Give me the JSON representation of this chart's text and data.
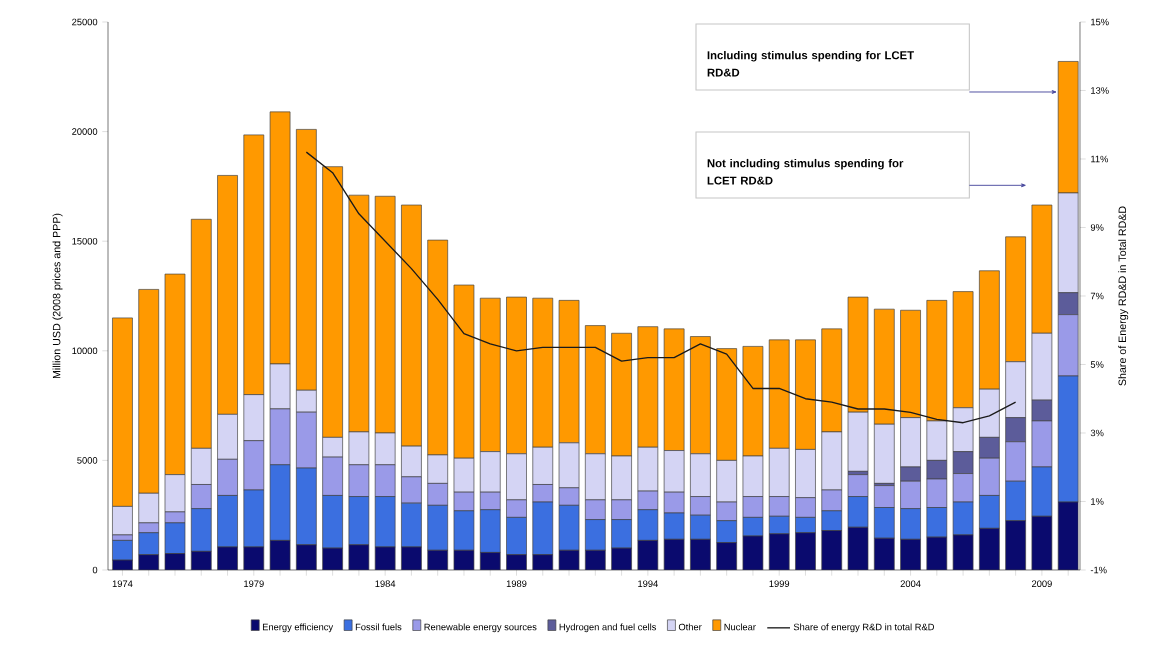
{
  "chart_data": {
    "type": "bar",
    "stacked": true,
    "legend": "bottom",
    "ylabel": "Million USD (2008 prices and PPP)",
    "y2label": "Share of Energy RD&D in Total RD&D",
    "categories": [
      "1974",
      null,
      null,
      null,
      null,
      "1979",
      null,
      null,
      null,
      null,
      "1984",
      null,
      null,
      null,
      null,
      "1989",
      null,
      null,
      null,
      null,
      "1994",
      null,
      null,
      null,
      null,
      "1999",
      null,
      null,
      null,
      null,
      "2004",
      null,
      null,
      null,
      null,
      "2009",
      null
    ],
    "ylim": [
      0,
      25000
    ],
    "yticks": [
      0,
      5000,
      10000,
      15000,
      20000,
      25000
    ],
    "y2lim": [
      -1,
      15
    ],
    "y2ticks": [
      {
        "value": -1,
        "label": "-1%"
      },
      {
        "value": 1,
        "label": "1%"
      },
      {
        "value": 3,
        "label": "3%"
      },
      {
        "value": 5,
        "label": "5%"
      },
      {
        "value": 7,
        "label": "7%"
      },
      {
        "value": 9,
        "label": "9%"
      },
      {
        "value": 11,
        "label": "11%"
      },
      {
        "value": 13,
        "label": "13%"
      },
      {
        "value": 15,
        "label": "15%"
      }
    ],
    "series": [
      {
        "name": "Energy efficiency",
        "color": "#0a0a6e",
        "values": [
          450,
          700,
          750,
          850,
          1050,
          1050,
          1350,
          1150,
          1000,
          1150,
          1050,
          1050,
          900,
          900,
          800,
          700,
          700,
          900,
          900,
          1000,
          1350,
          1400,
          1400,
          1250,
          1550,
          1650,
          1700,
          1800,
          1950,
          1450,
          1400,
          1500,
          1600,
          1900,
          2250,
          2450,
          3100
        ]
      },
      {
        "name": "Fossil fuels",
        "color": "#3b6fe0",
        "values": [
          900,
          1000,
          1400,
          1950,
          2350,
          2600,
          3450,
          3500,
          2400,
          2200,
          2300,
          2000,
          2050,
          1800,
          1950,
          1700,
          2400,
          2050,
          1400,
          1300,
          1400,
          1200,
          1100,
          1000,
          850,
          800,
          700,
          900,
          1400,
          1400,
          1400,
          1350,
          1500,
          1500,
          1800,
          2250,
          5750
        ]
      },
      {
        "name": "Renewable energy sources",
        "color": "#9a9ae8",
        "values": [
          250,
          450,
          500,
          1100,
          1650,
          2250,
          2550,
          2550,
          1750,
          1450,
          1450,
          1200,
          1000,
          850,
          800,
          800,
          800,
          800,
          900,
          900,
          850,
          950,
          850,
          850,
          950,
          900,
          900,
          950,
          1000,
          1000,
          1250,
          1300,
          1300,
          1700,
          1800,
          2100,
          2800
        ]
      },
      {
        "name": "Hydrogen and fuel cells",
        "color": "#5c5c9a",
        "values": [
          0,
          0,
          0,
          0,
          0,
          0,
          0,
          0,
          0,
          0,
          0,
          0,
          0,
          0,
          0,
          0,
          0,
          0,
          0,
          0,
          0,
          0,
          0,
          0,
          0,
          0,
          0,
          0,
          150,
          100,
          650,
          850,
          1000,
          950,
          1100,
          950,
          1000
        ]
      },
      {
        "name": "Other",
        "color": "#d4d4f4",
        "values": [
          1300,
          1350,
          1700,
          1650,
          2050,
          2100,
          2050,
          1000,
          900,
          1500,
          1450,
          1400,
          1300,
          1550,
          1850,
          2100,
          1700,
          2050,
          2100,
          2000,
          2000,
          1900,
          1950,
          1900,
          1850,
          2200,
          2200,
          2650,
          2700,
          2700,
          2250,
          1800,
          2000,
          2200,
          2550,
          3050,
          4550
        ]
      },
      {
        "name": "Nuclear",
        "color": "#ff9900",
        "values": [
          8600,
          9300,
          9150,
          10450,
          10900,
          11850,
          11500,
          11900,
          12350,
          10800,
          10800,
          11000,
          9800,
          7900,
          7000,
          7150,
          6800,
          6500,
          5850,
          5600,
          5500,
          5550,
          5350,
          5100,
          5000,
          4950,
          5000,
          4700,
          5250,
          5250,
          4900,
          5500,
          5300,
          5400,
          5700,
          5850,
          6000
        ]
      },
      {
        "name": "Share of energy R&D in total R&D",
        "type": "line",
        "axis": "y2",
        "color": "#1a1a1a",
        "values": [
          null,
          null,
          null,
          null,
          null,
          null,
          null,
          11.2,
          10.6,
          9.4,
          8.6,
          7.8,
          6.9,
          5.9,
          5.6,
          5.4,
          5.5,
          5.5,
          5.5,
          5.1,
          5.2,
          5.2,
          5.6,
          5.3,
          4.3,
          4.3,
          4.0,
          3.9,
          3.7,
          3.7,
          3.6,
          3.4,
          3.3,
          3.5,
          3.9,
          null,
          null
        ]
      }
    ],
    "annotations": [
      "Including stimulus spending for LCET RD&D",
      "Not including stimulus spending for LCET RD&D"
    ]
  }
}
